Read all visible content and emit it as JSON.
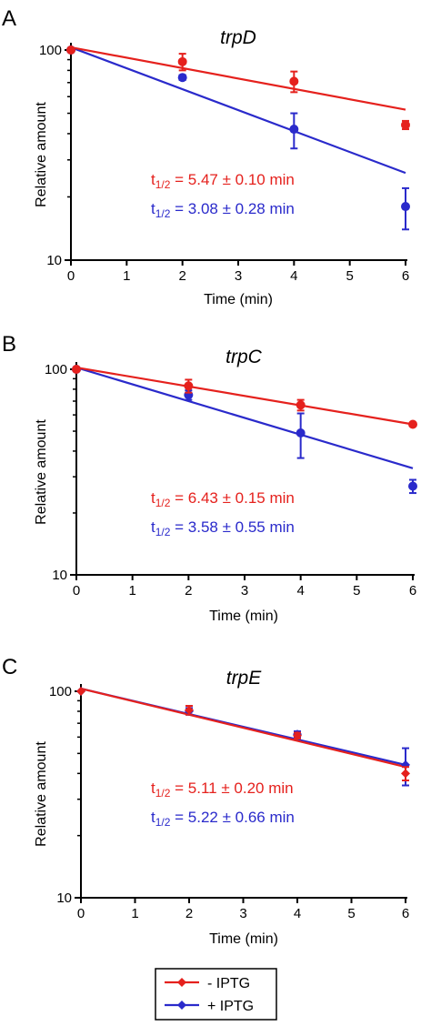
{
  "colors": {
    "minus_iptg": "#e5211d",
    "plus_iptg": "#2a2acb",
    "axis": "#000000"
  },
  "legend": {
    "placement": "bottom-center",
    "entries": [
      {
        "label": "- IPTG",
        "color": "#e5211d",
        "marker": "diamond"
      },
      {
        "label": "+ IPTG",
        "color": "#2a2acb",
        "marker": "diamond"
      }
    ]
  },
  "chart_data": [
    {
      "panel": "A",
      "type": "scatter",
      "title": "trpD",
      "xlabel": "Time (min)",
      "ylabel": "Relative amount",
      "xlim": [
        0,
        6
      ],
      "ylim": [
        10,
        100
      ],
      "yscale": "log",
      "xticks": [
        "0",
        "1",
        "2",
        "3",
        "4",
        "5",
        "6"
      ],
      "yticks": [
        {
          "value": 10,
          "label": "10"
        },
        {
          "value": 100,
          "label": "100"
        }
      ],
      "grid": false,
      "marker": "circle",
      "halflife_labels": [
        {
          "sub": "1/2",
          "text": " = 5.47 ± 0.10 min",
          "color": "#e5211d"
        },
        {
          "sub": "1/2",
          "text": " = 3.08 ± 0.28 min",
          "color": "#2a2acb"
        }
      ],
      "series": [
        {
          "color": "#e5211d",
          "x": [
            0,
            2,
            4,
            6
          ],
          "y": [
            100,
            88,
            71,
            44
          ],
          "err": [
            0,
            8,
            8,
            2
          ],
          "fit": {
            "x": [
              0,
              6
            ],
            "y": [
              103,
              52
            ]
          }
        },
        {
          "color": "#2a2acb",
          "x": [
            0,
            2,
            4,
            6
          ],
          "y": [
            100,
            74,
            42,
            18
          ],
          "err": [
            0,
            2,
            8,
            4
          ],
          "fit": {
            "x": [
              0,
              6
            ],
            "y": [
              103,
              26
            ]
          }
        }
      ]
    },
    {
      "panel": "B",
      "type": "scatter",
      "title": "trpC",
      "xlabel": "Time (min)",
      "ylabel": "Relative amount",
      "xlim": [
        0,
        6
      ],
      "ylim": [
        10,
        100
      ],
      "yscale": "log",
      "xticks": [
        "0",
        "1",
        "2",
        "3",
        "4",
        "5",
        "6"
      ],
      "yticks": [
        {
          "value": 10,
          "label": "10"
        },
        {
          "value": 100,
          "label": "100"
        }
      ],
      "grid": false,
      "marker": "circle",
      "halflife_labels": [
        {
          "sub": "1/2",
          "text": " = 6.43 ± 0.15 min",
          "color": "#e5211d"
        },
        {
          "sub": "1/2",
          "text": " = 3.58 ± 0.55 min",
          "color": "#2a2acb"
        }
      ],
      "series": [
        {
          "color": "#e5211d",
          "x": [
            0,
            2,
            4,
            6
          ],
          "y": [
            100,
            83,
            67,
            54
          ],
          "err": [
            0,
            6,
            4,
            1
          ],
          "fit": {
            "x": [
              0,
              6
            ],
            "y": [
              102,
              54
            ]
          }
        },
        {
          "color": "#2a2acb",
          "x": [
            0,
            2,
            4,
            6
          ],
          "y": [
            100,
            75,
            49,
            27
          ],
          "err": [
            0,
            4,
            12,
            2
          ],
          "fit": {
            "x": [
              0,
              6
            ],
            "y": [
              102,
              33
            ]
          }
        }
      ]
    },
    {
      "panel": "C",
      "type": "scatter",
      "title": "trpE",
      "xlabel": "Time (min)",
      "ylabel": "Relative amount",
      "xlim": [
        0,
        6
      ],
      "ylim": [
        10,
        100
      ],
      "yscale": "log",
      "xticks": [
        "0",
        "1",
        "2",
        "3",
        "4",
        "5",
        "6"
      ],
      "yticks": [
        {
          "value": 10,
          "label": "10"
        },
        {
          "value": 100,
          "label": "100"
        }
      ],
      "grid": false,
      "marker": "diamond",
      "halflife_labels": [
        {
          "sub": "1/2",
          "text": " = 5.11 ± 0.20 min",
          "color": "#e5211d"
        },
        {
          "sub": "1/2",
          "text": " = 5.22 ± 0.66 min",
          "color": "#2a2acb"
        }
      ],
      "series": [
        {
          "color": "#e5211d",
          "x": [
            0,
            2,
            4,
            6
          ],
          "y": [
            100,
            81,
            61,
            40
          ],
          "err": [
            0,
            4,
            2,
            3
          ],
          "fit": {
            "x": [
              0,
              6
            ],
            "y": [
              103,
              43
            ]
          }
        },
        {
          "color": "#2a2acb",
          "x": [
            0,
            2,
            4,
            6
          ],
          "y": [
            100,
            80,
            62,
            44
          ],
          "err": [
            0,
            3,
            2,
            9
          ],
          "fit": {
            "x": [
              0,
              6
            ],
            "y": [
              103,
              44
            ]
          }
        }
      ]
    }
  ]
}
